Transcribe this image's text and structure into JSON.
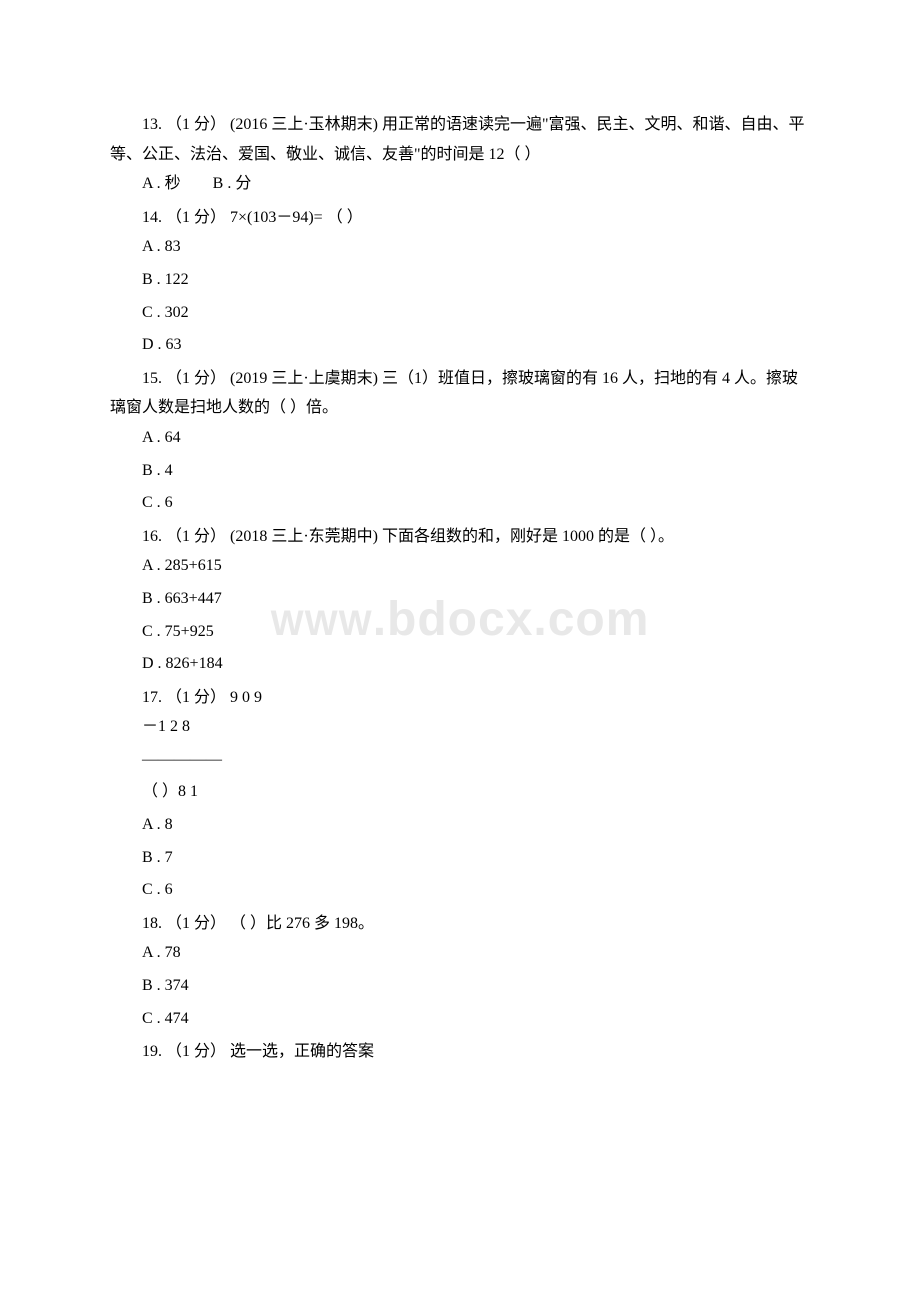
{
  "watermark": "www.bdocx.com",
  "questions": {
    "q13": {
      "text": "13. （1 分） (2016 三上·玉林期末) 用正常的语速读完一遍\"富强、民主、文明、和谐、自由、平等、公正、法治、爱国、敬业、诚信、友善\"的时间是 12（ ）",
      "options_inline": "A . 秒　　B . 分"
    },
    "q14": {
      "text": "14. （1 分） 7×(103－94)= （ ）",
      "optA": "A . 83",
      "optB": "B . 122",
      "optC": "C . 302",
      "optD": "D . 63"
    },
    "q15": {
      "text": "15. （1 分） (2019 三上·上虞期末) 三（1）班值日，擦玻璃窗的有 16 人，扫地的有 4 人。擦玻璃窗人数是扫地人数的（ ）倍。",
      "optA": "A . 64",
      "optB": "B . 4",
      "optC": "C . 6"
    },
    "q16": {
      "text": "16. （1 分） (2018 三上·东莞期中) 下面各组数的和，刚好是 1000 的是（ ）。",
      "optA": "A . 285+615",
      "optB": "B . 663+447",
      "optC": "C . 75+925",
      "optD": "D . 826+184"
    },
    "q17": {
      "text": "17. （1 分）  9 0 9",
      "line2": "－1 2 8",
      "line3": "―――――",
      "line4": "（ ）8 1",
      "optA": "A . 8",
      "optB": "B . 7",
      "optC": "C . 6"
    },
    "q18": {
      "text": "18. （1 分） （ ）比 276 多 198。",
      "optA": "A . 78",
      "optB": "B . 374",
      "optC": "C . 474"
    },
    "q19": {
      "text": "19. （1 分） 选一选，正确的答案"
    }
  }
}
